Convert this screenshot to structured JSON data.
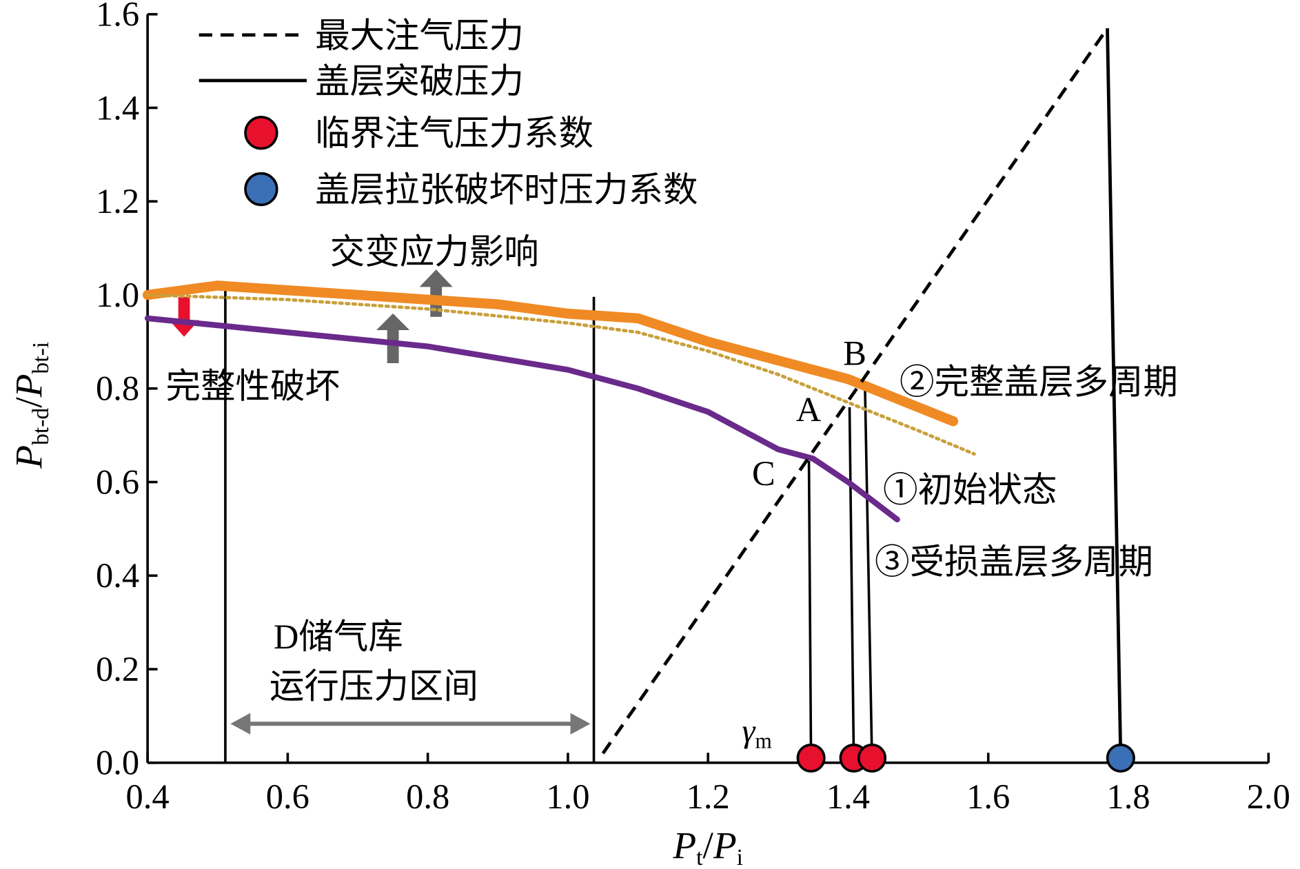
{
  "chart_data": {
    "type": "line",
    "x_label": [
      "P",
      "t",
      "/",
      "P",
      "i"
    ],
    "y_label": [
      "P",
      "bt-d",
      "/",
      "P",
      "bt-i"
    ],
    "xlim": [
      0.4,
      2.0
    ],
    "ylim": [
      0,
      1.6
    ],
    "xticks": [
      0.4,
      0.6,
      0.8,
      {
        "value": 1.0,
        "label": "1.0"
      },
      1.2,
      1.4,
      1.6,
      1.8,
      {
        "value": 2.0,
        "label": "2.0"
      }
    ],
    "yticks": [
      {
        "value": 0,
        "label": "0.0"
      },
      0.2,
      0.4,
      0.6,
      0.8,
      {
        "value": 1.0,
        "label": "1.0"
      },
      1.2,
      1.4,
      1.6
    ],
    "legend": "top-left",
    "series": [
      {
        "name": "最大注气压力",
        "type": "line",
        "style": "dashed",
        "color": "#000000",
        "x": [
          1.05,
          1.77
        ],
        "values": [
          0.02,
          1.57
        ]
      },
      {
        "name": "盖层突破压力",
        "type": "line",
        "style": "solid",
        "color": "#000000",
        "x": [
          1.77,
          1.789
        ],
        "values": [
          1.57,
          0.01
        ]
      },
      {
        "name": "临界注气压力系数",
        "type": "scatter",
        "color": "#e8112d",
        "x": [
          1.347,
          1.408,
          1.434
        ],
        "values": [
          0.01,
          0.01,
          0.01
        ]
      },
      {
        "name": "盖层拉张破坏时压力系数",
        "type": "scatter",
        "color": "#3b6fb6",
        "x": [
          1.789
        ],
        "values": [
          0.01
        ]
      }
    ],
    "curves": [
      {
        "name": "②完整盖层多周期",
        "color": "#f08a24",
        "style": "thick",
        "x": [
          0.4,
          0.5,
          0.6,
          0.7,
          0.8,
          0.9,
          1.0,
          1.1,
          1.2,
          1.3,
          1.4,
          1.55
        ],
        "values": [
          1.0,
          1.02,
          1.01,
          1.0,
          0.99,
          0.98,
          0.96,
          0.95,
          0.9,
          0.86,
          0.82,
          0.73
        ]
      },
      {
        "name": "①初始状态",
        "color": "#c8a03c",
        "style": "dotted",
        "x": [
          0.4,
          0.6,
          0.8,
          1.0,
          1.1,
          1.2,
          1.3,
          1.4,
          1.5,
          1.58
        ],
        "values": [
          1.0,
          0.99,
          0.97,
          0.94,
          0.92,
          0.88,
          0.83,
          0.77,
          0.71,
          0.66
        ]
      },
      {
        "name": "③受损盖层多周期",
        "color": "#6a2a8c",
        "style": "medium",
        "x": [
          0.4,
          0.5,
          0.6,
          0.8,
          1.0,
          1.1,
          1.2,
          1.3,
          1.35,
          1.4,
          1.47
        ],
        "values": [
          0.95,
          0.935,
          0.92,
          0.89,
          0.84,
          0.8,
          0.75,
          0.67,
          0.65,
          0.6,
          0.52
        ]
      }
    ],
    "reference_lines": [
      {
        "x": [
          0.511,
          0.511
        ],
        "values": [
          0,
          1.02
        ]
      },
      {
        "x": [
          1.037,
          1.037
        ],
        "values": [
          0,
          0.996
        ]
      },
      {
        "x": [
          1.344,
          1.347
        ],
        "values": [
          0.645,
          0.01
        ]
      },
      {
        "x": [
          1.402,
          1.408
        ],
        "values": [
          0.76,
          0.01
        ]
      },
      {
        "x": [
          1.424,
          1.434
        ],
        "values": [
          0.806,
          0.01
        ]
      }
    ],
    "annotations": [
      "交变应力影响",
      "完整性破坏",
      "D储气库",
      "运行压力区间",
      "A",
      "B",
      "C"
    ],
    "gamma_label": [
      "γ",
      "m"
    ]
  }
}
